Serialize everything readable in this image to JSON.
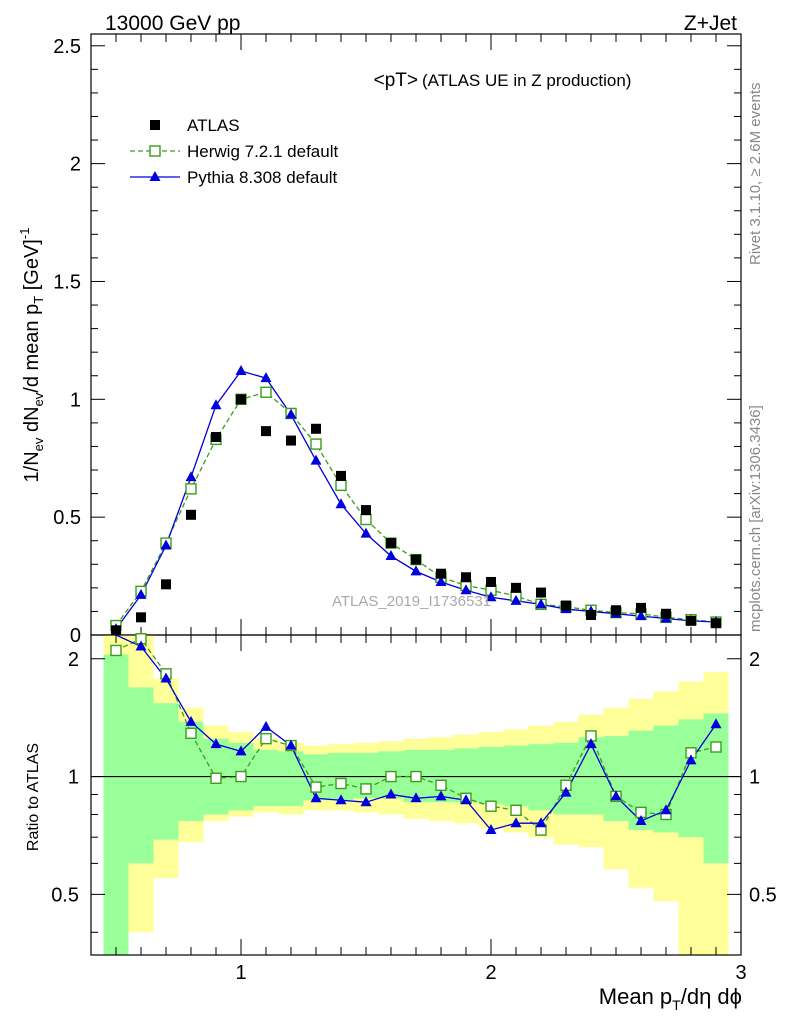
{
  "header": {
    "left": "13000 GeV pp",
    "right": "Z+Jet"
  },
  "side": {
    "rivet": "Rivet 3.1.10, ≥ 2.6M events",
    "mcplots": "mcplots.cern.ch [arXiv:1306.3436]"
  },
  "watermark": "ATLAS_2019_I1736531",
  "chart_data": {
    "type": "scatter",
    "title": "<pT>",
    "subtitle": "(ATLAS UE in Z production)",
    "xlabel": "Mean p_T/dη dϕ",
    "ylabel": "1/N_ev dN_ev/d mean p_T [GeV]^-1",
    "ratio_ylabel": "Ratio to ATLAS",
    "xlim": [
      0.4,
      3.0
    ],
    "ylim": [
      0,
      2.55
    ],
    "ratio_ylim": [
      0.35,
      2.3
    ],
    "xticks": [
      1,
      2,
      3
    ],
    "xtick_labels": [
      "1",
      "2",
      "3"
    ],
    "yticks": [
      0,
      0.5,
      1,
      1.5,
      2,
      2.5
    ],
    "ytick_labels": [
      "0",
      "0.5",
      "1",
      "1.5",
      "2",
      "2.5"
    ],
    "ratio_yticks": [
      0.5,
      1,
      2
    ],
    "ratio_ytick_labels": [
      "0.5",
      "1",
      "2"
    ],
    "legend_position": "top-left",
    "x": [
      0.5,
      0.6,
      0.7,
      0.8,
      0.9,
      1.0,
      1.1,
      1.2,
      1.3,
      1.4,
      1.5,
      1.6,
      1.7,
      1.8,
      1.9,
      2.0,
      2.1,
      2.2,
      2.3,
      2.4,
      2.5,
      2.6,
      2.7,
      2.8,
      2.9
    ],
    "series": [
      {
        "name": "ATLAS",
        "color": "#000000",
        "marker": "square-filled",
        "values": [
          0.02,
          0.075,
          0.215,
          0.51,
          0.84,
          1.0,
          0.865,
          0.825,
          0.875,
          0.675,
          0.53,
          0.39,
          0.32,
          0.26,
          0.245,
          0.225,
          0.2,
          0.18,
          0.125,
          0.085,
          0.105,
          0.115,
          0.09,
          0.06,
          0.05
        ]
      },
      {
        "name": "Herwig 7.2.1 default",
        "color": "#3c9c1c",
        "marker": "square-open",
        "dashed": true,
        "values": [
          0.04,
          0.185,
          0.39,
          0.62,
          0.83,
          1.0,
          1.03,
          0.94,
          0.81,
          0.635,
          0.49,
          0.39,
          0.32,
          0.245,
          0.21,
          0.19,
          0.165,
          0.13,
          0.12,
          0.105,
          0.095,
          0.09,
          0.075,
          0.065,
          0.055
        ]
      },
      {
        "name": "Pythia 8.308 default",
        "color": "#0000dd",
        "marker": "triangle-filled",
        "values": [
          0.025,
          0.17,
          0.38,
          0.67,
          0.975,
          1.12,
          1.09,
          0.935,
          0.74,
          0.555,
          0.43,
          0.335,
          0.27,
          0.225,
          0.19,
          0.16,
          0.145,
          0.13,
          0.11,
          0.1,
          0.09,
          0.08,
          0.07,
          0.06,
          0.055
        ]
      }
    ],
    "ratio": {
      "reference": 1,
      "herwig": [
        2.1,
        2.25,
        1.83,
        1.29,
        0.99,
        1.0,
        1.25,
        1.2,
        0.94,
        0.96,
        0.93,
        1.0,
        1.0,
        0.95,
        0.88,
        0.84,
        0.82,
        0.73,
        0.95,
        1.27,
        0.89,
        0.81,
        0.8,
        1.15,
        1.19
      ],
      "pythia": [
        2.35,
        2.15,
        1.78,
        1.38,
        1.21,
        1.16,
        1.34,
        1.2,
        0.88,
        0.87,
        0.86,
        0.9,
        0.88,
        0.89,
        0.87,
        0.73,
        0.76,
        0.76,
        0.91,
        1.21,
        0.89,
        0.77,
        0.82,
        1.1,
        1.36
      ],
      "band_inner_low": [
        0.35,
        0.6,
        0.69,
        0.77,
        0.8,
        0.82,
        0.84,
        0.84,
        0.87,
        0.87,
        0.88,
        0.88,
        0.86,
        0.86,
        0.86,
        0.85,
        0.84,
        0.82,
        0.8,
        0.8,
        0.77,
        0.73,
        0.72,
        0.7,
        0.6
      ],
      "band_inner_high": [
        2.05,
        1.69,
        1.54,
        1.38,
        1.25,
        1.22,
        1.17,
        1.16,
        1.14,
        1.15,
        1.15,
        1.16,
        1.17,
        1.17,
        1.18,
        1.19,
        1.2,
        1.21,
        1.22,
        1.26,
        1.27,
        1.31,
        1.35,
        1.4,
        1.45
      ],
      "band_outer_low": [
        0.35,
        0.4,
        0.55,
        0.68,
        0.77,
        0.79,
        0.81,
        0.8,
        0.82,
        0.82,
        0.81,
        0.8,
        0.78,
        0.77,
        0.76,
        0.74,
        0.72,
        0.7,
        0.67,
        0.66,
        0.58,
        0.52,
        0.48,
        0.35,
        0.35
      ],
      "band_outer_high": [
        2.3,
        2.3,
        1.78,
        1.5,
        1.35,
        1.3,
        1.25,
        1.22,
        1.2,
        1.21,
        1.22,
        1.23,
        1.25,
        1.26,
        1.28,
        1.3,
        1.32,
        1.35,
        1.38,
        1.44,
        1.5,
        1.58,
        1.65,
        1.75,
        1.85
      ]
    }
  }
}
